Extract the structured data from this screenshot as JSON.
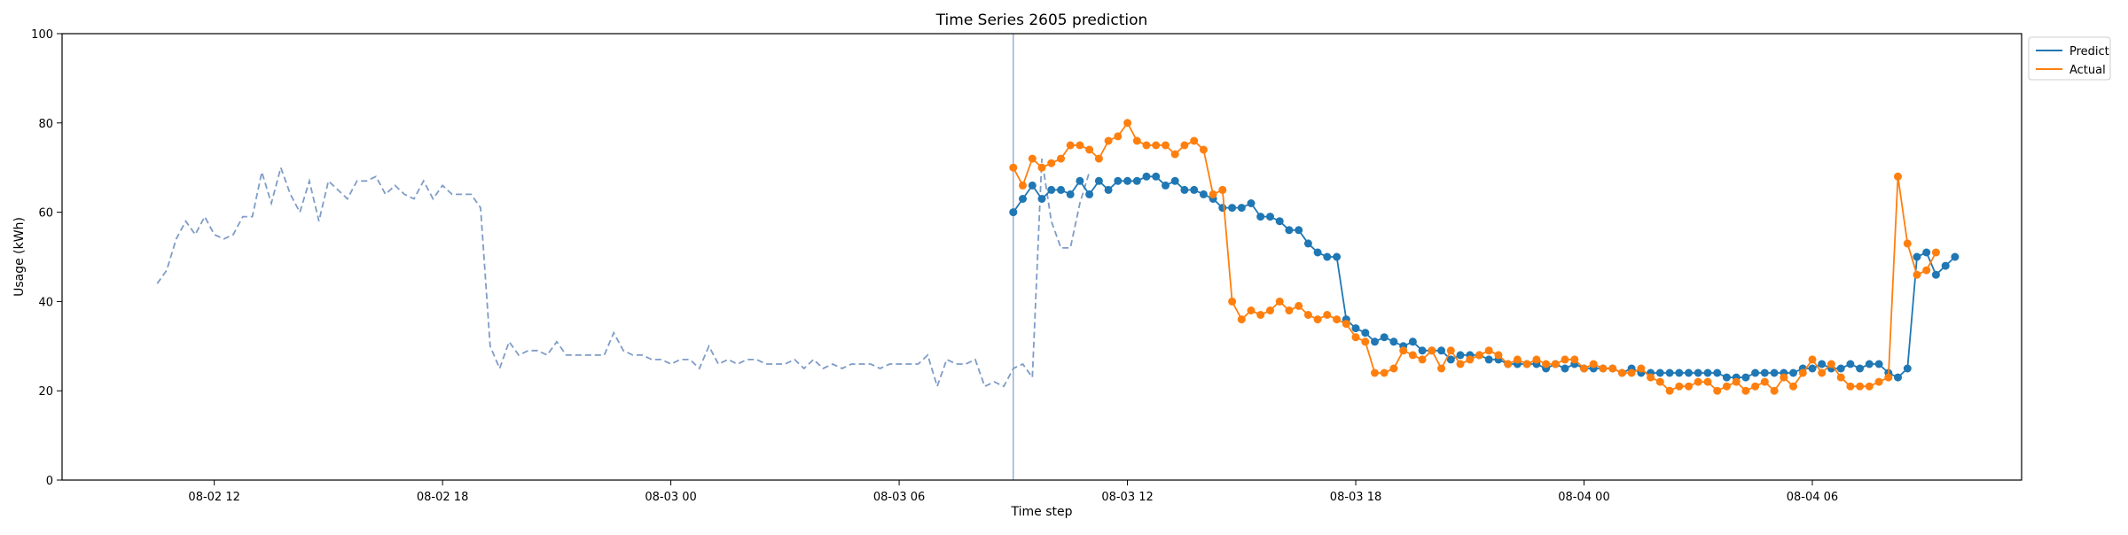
{
  "chart_data": {
    "type": "line",
    "title": "Time Series 2605 prediction",
    "xlabel": "Time step",
    "ylabel": "Usage (kWh)",
    "ylim": [
      0,
      100
    ],
    "yticks": [
      0,
      20,
      40,
      60,
      80,
      100
    ],
    "xlim": [
      "2024-08-02 08:00",
      "2024-08-04 11:30"
    ],
    "xticks": [
      {
        "value": "2024-08-02 12:00",
        "label": "08-02 12"
      },
      {
        "value": "2024-08-02 18:00",
        "label": "08-02 18"
      },
      {
        "value": "2024-08-03 00:00",
        "label": "08-03 00"
      },
      {
        "value": "2024-08-03 06:00",
        "label": "08-03 06"
      },
      {
        "value": "2024-08-03 12:00",
        "label": "08-03 12"
      },
      {
        "value": "2024-08-03 18:00",
        "label": "08-03 18"
      },
      {
        "value": "2024-08-04 00:00",
        "label": "08-04 00"
      },
      {
        "value": "2024-08-04 06:00",
        "label": "08-04 06"
      }
    ],
    "grid": false,
    "legend_position": "outside top-right",
    "forecast_start": "2024-08-03 09:00",
    "history": {
      "start": "2024-08-02 10:30",
      "interval_minutes": 15,
      "color": "#7f9cc7",
      "style": "dashed",
      "values": [
        44,
        47,
        54,
        58,
        55,
        59,
        55,
        54,
        55,
        59,
        59,
        69,
        62,
        70,
        64,
        60,
        67,
        58,
        67,
        65,
        63,
        67,
        67,
        68,
        64,
        66,
        64,
        63,
        67,
        63,
        66,
        64,
        64,
        64,
        61,
        30,
        25,
        31,
        28,
        29,
        29,
        28,
        31,
        28,
        28,
        28,
        28,
        28,
        33,
        29,
        28,
        28,
        27,
        27,
        26,
        27,
        27,
        25,
        30,
        26,
        27,
        26,
        27,
        27,
        26,
        26,
        26,
        27,
        25,
        27,
        25,
        26,
        25,
        26,
        26,
        26,
        25,
        26,
        26,
        26,
        26,
        28,
        21,
        27,
        26,
        26,
        27,
        21,
        22,
        21,
        25,
        26,
        23,
        72,
        58,
        52,
        52,
        62,
        69
      ]
    },
    "series": [
      {
        "name": "Predict",
        "color": "#1f77b4",
        "start": "2024-08-03 09:00",
        "interval_minutes": 15,
        "values": [
          60,
          63,
          66,
          63,
          65,
          65,
          64,
          67,
          64,
          67,
          65,
          67,
          67,
          67,
          68,
          68,
          66,
          67,
          65,
          65,
          64,
          63,
          61,
          61,
          61,
          62,
          59,
          59,
          58,
          56,
          56,
          53,
          51,
          50,
          50,
          36,
          34,
          33,
          31,
          32,
          31,
          30,
          31,
          29,
          29,
          29,
          27,
          28,
          28,
          28,
          27,
          27,
          26,
          26,
          26,
          26,
          25,
          26,
          25,
          26,
          25,
          25,
          25,
          25,
          24,
          25,
          24,
          24,
          24,
          24,
          24,
          24,
          24,
          24,
          24,
          23,
          23,
          23,
          24,
          24,
          24,
          24,
          24,
          25,
          25,
          26,
          25,
          25,
          26,
          25,
          26,
          26,
          24,
          23,
          25,
          50,
          51,
          46,
          48,
          50
        ]
      },
      {
        "name": "Actual",
        "color": "#ff7f0e",
        "start": "2024-08-03 09:00",
        "interval_minutes": 15,
        "values": [
          70,
          66,
          72,
          70,
          71,
          72,
          75,
          75,
          74,
          72,
          76,
          77,
          80,
          76,
          75,
          75,
          75,
          73,
          75,
          76,
          74,
          64,
          65,
          40,
          36,
          38,
          37,
          38,
          40,
          38,
          39,
          37,
          36,
          37,
          36,
          35,
          32,
          31,
          24,
          24,
          25,
          29,
          28,
          27,
          29,
          25,
          29,
          26,
          27,
          28,
          29,
          28,
          26,
          27,
          26,
          27,
          26,
          26,
          27,
          27,
          25,
          26,
          25,
          25,
          24,
          24,
          25,
          23,
          22,
          20,
          21,
          21,
          22,
          22,
          20,
          21,
          22,
          20,
          21,
          22,
          20,
          23,
          21,
          24,
          27,
          24,
          26,
          23,
          21,
          21,
          21,
          22,
          23,
          68,
          53,
          46,
          47,
          51
        ]
      }
    ]
  }
}
